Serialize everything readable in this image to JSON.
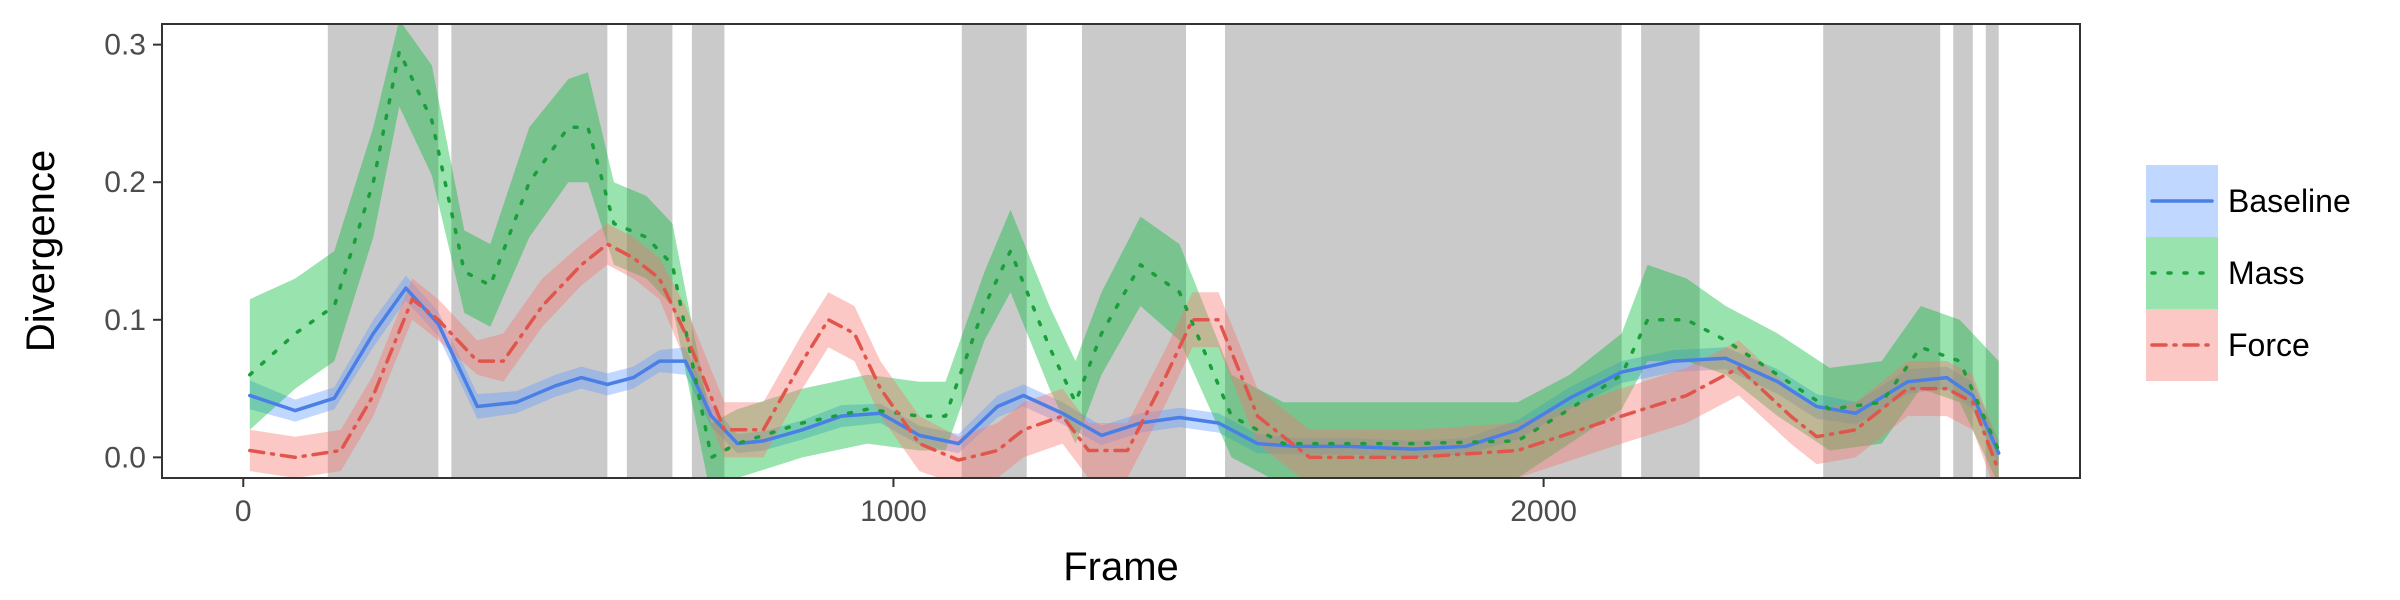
{
  "chart_data": {
    "type": "line",
    "xlabel": "Frame",
    "ylabel": "Divergence",
    "xlim": [
      -125,
      2825
    ],
    "ylim": [
      -0.015,
      0.315
    ],
    "x_ticks": [
      0,
      1000,
      2000
    ],
    "x_tick_labels": [
      "0",
      "1000",
      "2000"
    ],
    "y_ticks": [
      0.0,
      0.1,
      0.2,
      0.3
    ],
    "y_tick_labels": [
      "0.0",
      "0.1",
      "0.2",
      "0.3"
    ],
    "grid": false,
    "legend_position": "right",
    "shaded_regions": [
      [
        130,
        300
      ],
      [
        320,
        560
      ],
      [
        590,
        660
      ],
      [
        690,
        740
      ],
      [
        1105,
        1205
      ],
      [
        1290,
        1450
      ],
      [
        1510,
        2120
      ],
      [
        2150,
        2240
      ],
      [
        2430,
        2610
      ],
      [
        2630,
        2660
      ],
      [
        2680,
        2700
      ]
    ],
    "series": [
      {
        "name": "Baseline",
        "color": "#619cff",
        "line_color": "#4a7fe6",
        "dash": "",
        "x": [
          10,
          80,
          140,
          200,
          250,
          300,
          360,
          420,
          480,
          520,
          560,
          600,
          640,
          680,
          720,
          760,
          800,
          860,
          920,
          980,
          1040,
          1100,
          1160,
          1200,
          1260,
          1320,
          1380,
          1440,
          1500,
          1560,
          1620,
          1700,
          1800,
          1880,
          1960,
          2040,
          2120,
          2200,
          2280,
          2360,
          2420,
          2480,
          2560,
          2620,
          2660,
          2700
        ],
        "y": [
          0.045,
          0.034,
          0.043,
          0.09,
          0.123,
          0.097,
          0.037,
          0.04,
          0.052,
          0.058,
          0.053,
          0.058,
          0.07,
          0.07,
          0.03,
          0.01,
          0.012,
          0.02,
          0.03,
          0.032,
          0.016,
          0.01,
          0.037,
          0.045,
          0.032,
          0.016,
          0.025,
          0.029,
          0.025,
          0.01,
          0.008,
          0.008,
          0.006,
          0.008,
          0.02,
          0.043,
          0.062,
          0.07,
          0.072,
          0.055,
          0.037,
          0.032,
          0.055,
          0.058,
          0.045,
          0.003
        ],
        "lower": [
          0.035,
          0.026,
          0.035,
          0.08,
          0.114,
          0.088,
          0.028,
          0.032,
          0.044,
          0.05,
          0.045,
          0.05,
          0.062,
          0.06,
          0.022,
          0.003,
          0.005,
          0.013,
          0.022,
          0.025,
          0.009,
          0.003,
          0.029,
          0.037,
          0.024,
          0.009,
          0.018,
          0.022,
          0.018,
          0.003,
          0.002,
          0.002,
          0.0,
          0.002,
          0.013,
          0.035,
          0.054,
          0.062,
          0.064,
          0.046,
          0.028,
          0.024,
          0.046,
          0.05,
          0.035,
          -0.006
        ],
        "upper": [
          0.056,
          0.042,
          0.051,
          0.1,
          0.132,
          0.106,
          0.046,
          0.048,
          0.06,
          0.066,
          0.061,
          0.066,
          0.078,
          0.08,
          0.038,
          0.017,
          0.019,
          0.027,
          0.038,
          0.039,
          0.023,
          0.017,
          0.045,
          0.053,
          0.04,
          0.023,
          0.032,
          0.036,
          0.032,
          0.017,
          0.014,
          0.014,
          0.012,
          0.014,
          0.027,
          0.051,
          0.07,
          0.078,
          0.08,
          0.064,
          0.046,
          0.04,
          0.064,
          0.066,
          0.055,
          0.012
        ]
      },
      {
        "name": "Mass",
        "color": "#00ba38",
        "line_color": "#1a9e3a",
        "dash": "3,13",
        "x": [
          10,
          80,
          140,
          200,
          240,
          290,
          340,
          380,
          440,
          500,
          530,
          570,
          620,
          660,
          720,
          760,
          860,
          960,
          1040,
          1080,
          1140,
          1180,
          1240,
          1280,
          1320,
          1380,
          1440,
          1520,
          1600,
          1800,
          1960,
          2040,
          2120,
          2160,
          2220,
          2280,
          2360,
          2440,
          2520,
          2580,
          2640,
          2700
        ],
        "y": [
          0.06,
          0.09,
          0.11,
          0.2,
          0.295,
          0.245,
          0.135,
          0.125,
          0.2,
          0.24,
          0.24,
          0.17,
          0.16,
          0.14,
          0.0,
          0.01,
          0.025,
          0.035,
          0.03,
          0.03,
          0.11,
          0.15,
          0.08,
          0.04,
          0.09,
          0.14,
          0.12,
          0.03,
          0.01,
          0.01,
          0.012,
          0.035,
          0.06,
          0.1,
          0.1,
          0.085,
          0.06,
          0.035,
          0.04,
          0.08,
          0.07,
          0.005
        ],
        "lower": [
          0.02,
          0.05,
          0.07,
          0.16,
          0.255,
          0.205,
          0.105,
          0.095,
          0.16,
          0.2,
          0.2,
          0.14,
          0.13,
          0.11,
          -0.03,
          -0.015,
          0.0,
          0.01,
          0.005,
          0.005,
          0.085,
          0.12,
          0.05,
          0.01,
          0.06,
          0.11,
          0.085,
          0.0,
          -0.02,
          -0.02,
          -0.015,
          0.01,
          0.035,
          0.07,
          0.07,
          0.06,
          0.03,
          0.005,
          0.01,
          0.05,
          0.04,
          -0.02
        ],
        "upper": [
          0.115,
          0.13,
          0.15,
          0.24,
          0.318,
          0.285,
          0.165,
          0.155,
          0.24,
          0.275,
          0.28,
          0.2,
          0.19,
          0.17,
          0.025,
          0.035,
          0.05,
          0.06,
          0.055,
          0.055,
          0.135,
          0.18,
          0.11,
          0.07,
          0.12,
          0.175,
          0.155,
          0.06,
          0.04,
          0.04,
          0.04,
          0.06,
          0.09,
          0.14,
          0.13,
          0.11,
          0.09,
          0.065,
          0.07,
          0.11,
          0.1,
          0.07
        ]
      },
      {
        "name": "Force",
        "color": "#f8766d",
        "line_color": "#e0564d",
        "dash": "14,8,2,8",
        "x": [
          10,
          80,
          150,
          200,
          260,
          300,
          360,
          400,
          460,
          520,
          560,
          600,
          640,
          680,
          740,
          800,
          860,
          900,
          940,
          980,
          1040,
          1100,
          1160,
          1200,
          1260,
          1300,
          1360,
          1420,
          1460,
          1500,
          1560,
          1640,
          1800,
          1960,
          2120,
          2220,
          2300,
          2380,
          2420,
          2480,
          2560,
          2620,
          2660,
          2700
        ],
        "y": [
          0.005,
          0.0,
          0.005,
          0.045,
          0.115,
          0.1,
          0.07,
          0.07,
          0.11,
          0.14,
          0.155,
          0.145,
          0.13,
          0.09,
          0.02,
          0.02,
          0.07,
          0.1,
          0.09,
          0.05,
          0.01,
          -0.002,
          0.005,
          0.02,
          0.03,
          0.005,
          0.005,
          0.06,
          0.1,
          0.1,
          0.03,
          0.0,
          0.0,
          0.005,
          0.03,
          0.045,
          0.065,
          0.03,
          0.015,
          0.02,
          0.05,
          0.05,
          0.04,
          -0.01
        ],
        "lower": [
          -0.01,
          -0.015,
          -0.01,
          0.03,
          0.1,
          0.085,
          0.06,
          0.055,
          0.095,
          0.125,
          0.14,
          0.13,
          0.115,
          0.07,
          0.0,
          0.0,
          0.05,
          0.08,
          0.07,
          0.03,
          -0.01,
          -0.02,
          -0.015,
          0.0,
          0.01,
          -0.015,
          -0.015,
          0.04,
          0.08,
          0.08,
          0.01,
          -0.02,
          -0.02,
          -0.015,
          0.01,
          0.025,
          0.045,
          0.01,
          -0.005,
          0.0,
          0.03,
          0.03,
          0.02,
          -0.03
        ],
        "upper": [
          0.02,
          0.015,
          0.02,
          0.06,
          0.13,
          0.115,
          0.085,
          0.09,
          0.13,
          0.155,
          0.17,
          0.16,
          0.145,
          0.11,
          0.04,
          0.04,
          0.09,
          0.12,
          0.11,
          0.07,
          0.03,
          0.015,
          0.025,
          0.04,
          0.05,
          0.025,
          0.025,
          0.08,
          0.12,
          0.12,
          0.05,
          0.02,
          0.02,
          0.025,
          0.05,
          0.065,
          0.085,
          0.05,
          0.035,
          0.04,
          0.07,
          0.07,
          0.06,
          0.01
        ]
      }
    ]
  }
}
